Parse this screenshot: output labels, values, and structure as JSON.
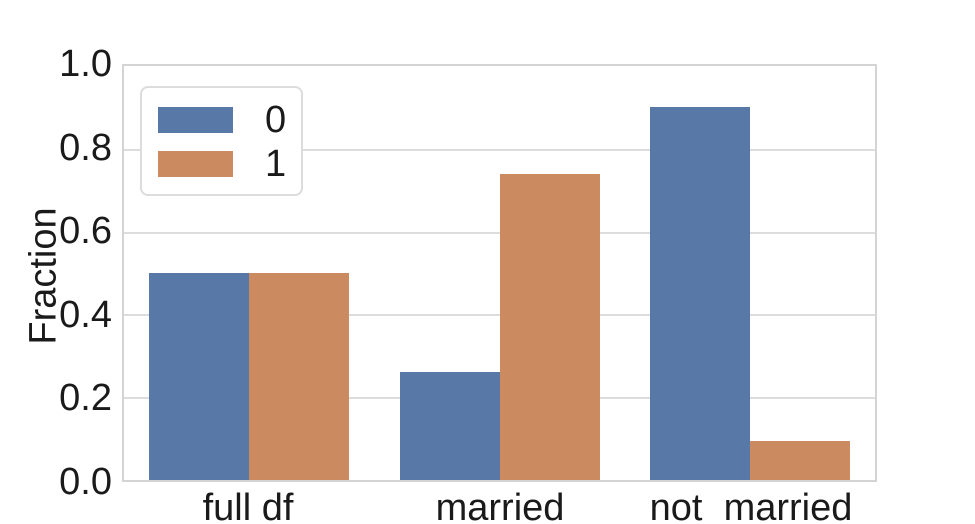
{
  "chart_data": {
    "type": "bar",
    "title": "",
    "xlabel": "",
    "ylabel": "Fraction",
    "categories": [
      "full df",
      "married",
      "not_married"
    ],
    "series": [
      {
        "name": "0",
        "color": "#5878A8",
        "values": [
          0.5,
          0.26,
          0.9
        ]
      },
      {
        "name": "1",
        "color": "#CC8A61",
        "values": [
          0.5,
          0.74,
          0.095
        ]
      }
    ],
    "ylim": [
      0,
      1.0
    ],
    "yticks": [
      "0.0",
      "0.2",
      "0.4",
      "0.6",
      "0.8",
      "1.0"
    ],
    "grid": true,
    "legend": {
      "position": "upper-left"
    },
    "colors": {
      "grid": "#dcdcdc",
      "spine": "#d4d4d4",
      "text": "#1a1a1a",
      "background": "#ffffff"
    }
  }
}
